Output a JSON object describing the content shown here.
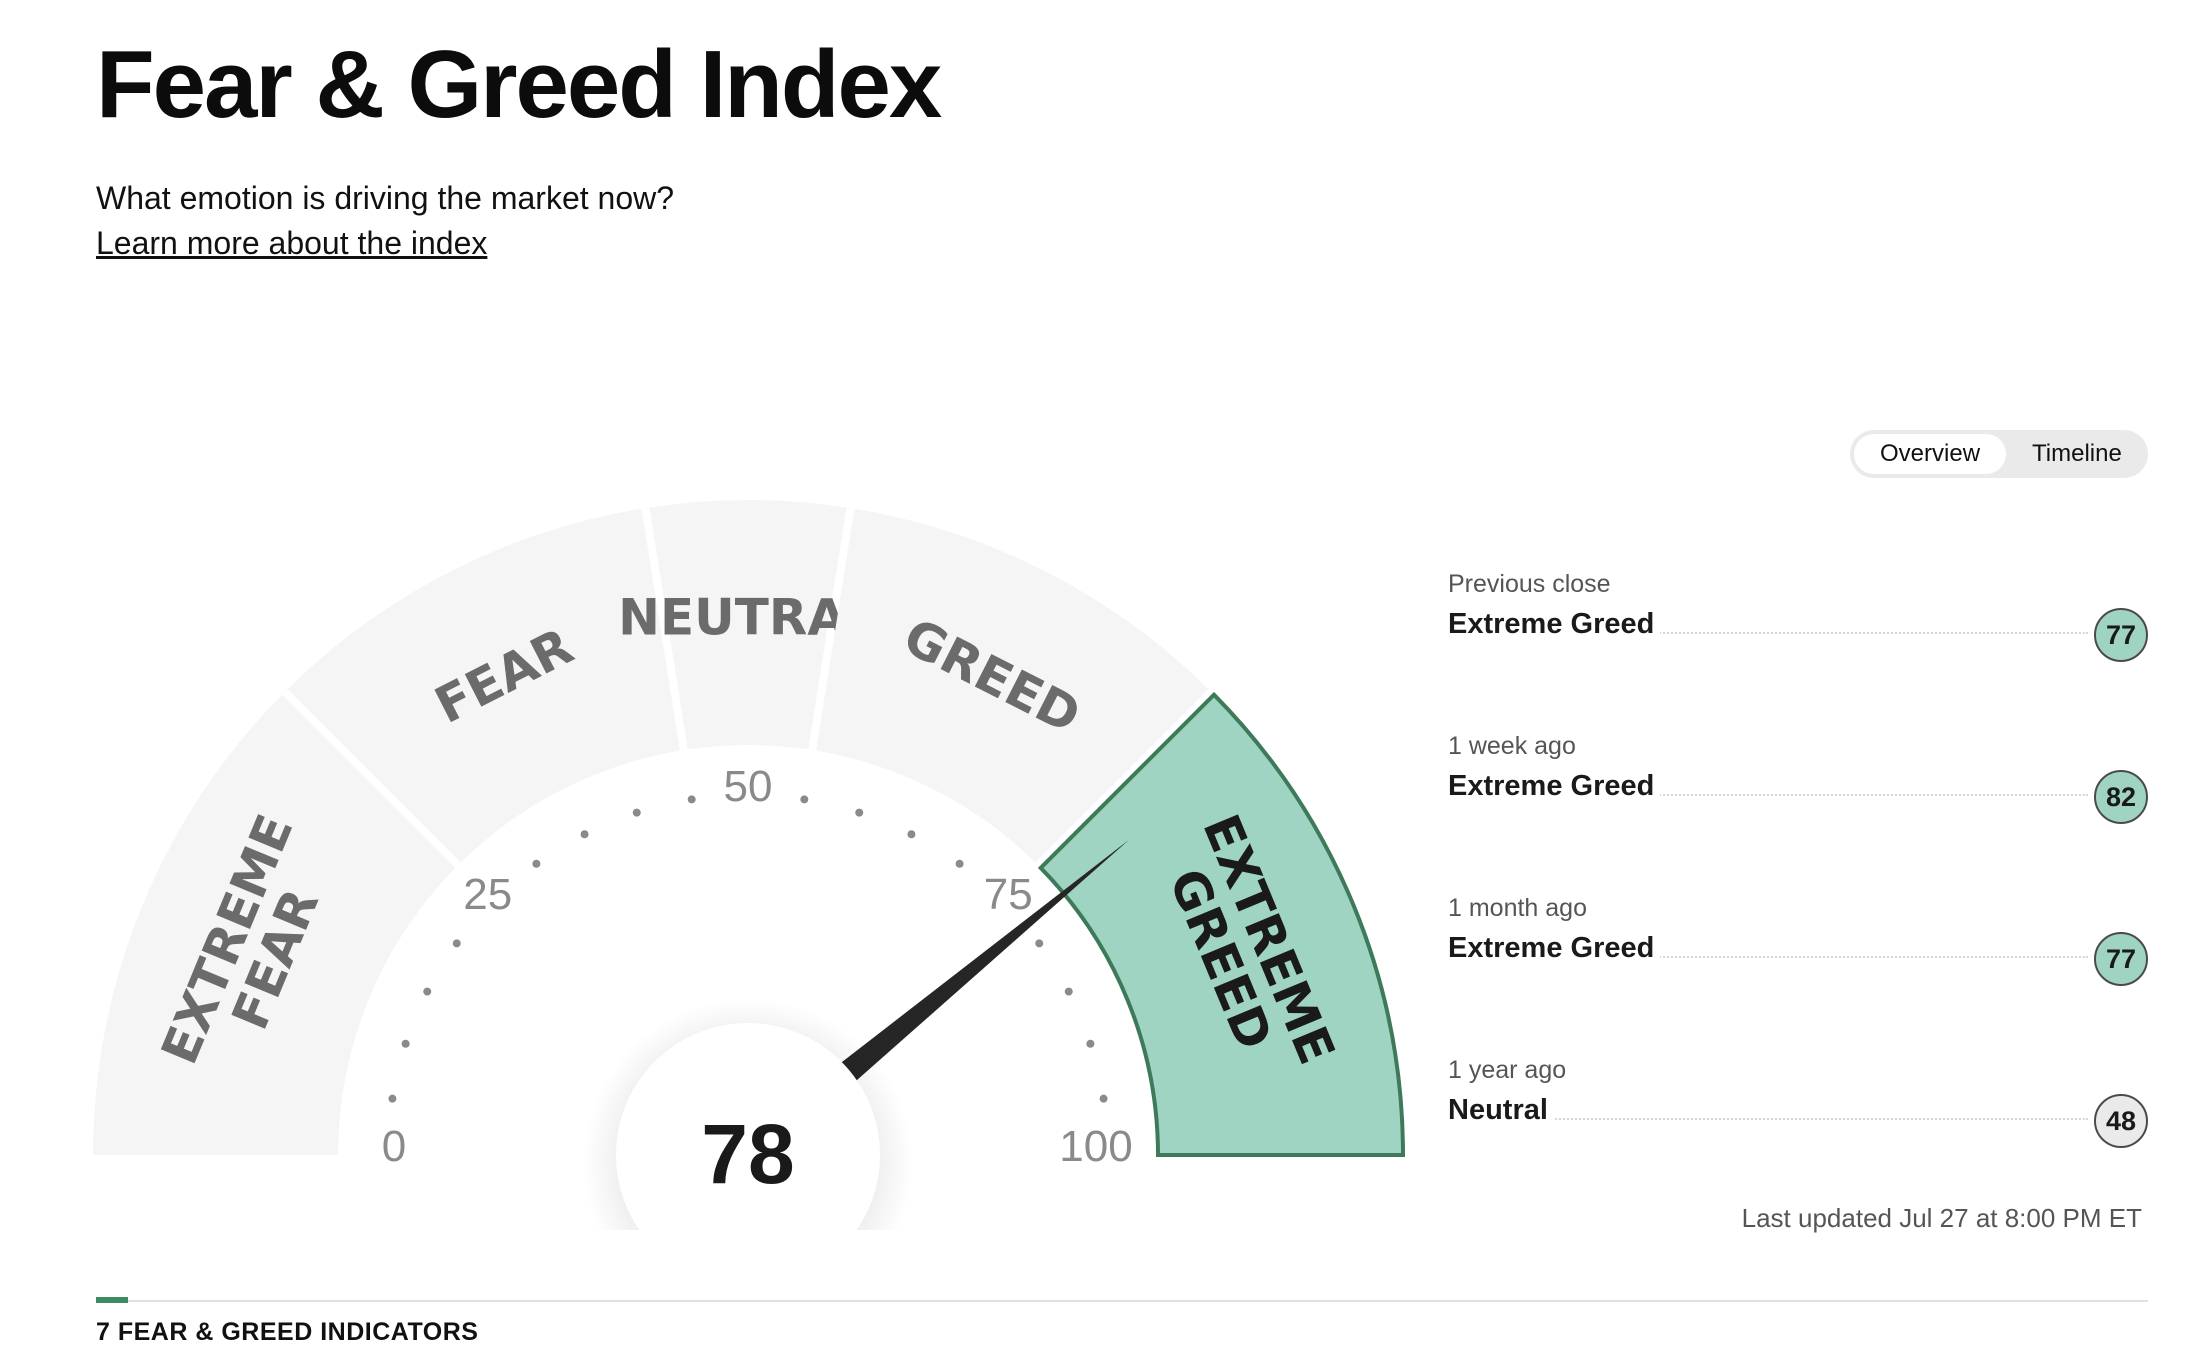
{
  "page": {
    "title": "Fear & Greed Index",
    "subtitle": "What emotion is driving the market now?",
    "learn_more": "Learn more about the index"
  },
  "toggle": {
    "overview": "Overview",
    "timeline": "Timeline",
    "selected": "Overview"
  },
  "gauge": {
    "value": 78,
    "value_label": "78",
    "min": 0,
    "max": 100,
    "active_zone": "Extreme Greed",
    "zones": [
      {
        "lines": [
          "EXTREME",
          "FEAR"
        ],
        "range": [
          0,
          25
        ]
      },
      {
        "lines": [
          "FEAR"
        ],
        "range": [
          25,
          45
        ]
      },
      {
        "lines": [
          "NEUTRAL"
        ],
        "range": [
          45,
          55
        ]
      },
      {
        "lines": [
          "GREED"
        ],
        "range": [
          55,
          75
        ]
      },
      {
        "lines": [
          "EXTREME",
          "GREED"
        ],
        "range": [
          75,
          100
        ]
      }
    ],
    "tick_labels": [
      "0",
      "25",
      "50",
      "75",
      "100"
    ],
    "colors": {
      "zone_bg": "#f5f5f5",
      "active_fill": "#9fd4c2",
      "active_stroke": "#3e7a5a",
      "zone_text": "#6b6b6b",
      "active_text": "#1a1a1a",
      "needle": "#262626",
      "tick_text": "#8a8a8a"
    }
  },
  "history": [
    {
      "period": "Previous close",
      "rating": "Extreme Greed",
      "value": "77",
      "color": "#9fd4c2"
    },
    {
      "period": "1 week ago",
      "rating": "Extreme Greed",
      "value": "82",
      "color": "#9fd4c2"
    },
    {
      "period": "1 month ago",
      "rating": "Extreme Greed",
      "value": "77",
      "color": "#9fd4c2"
    },
    {
      "period": "1 year ago",
      "rating": "Neutral",
      "value": "48",
      "color": "#eaeaea"
    }
  ],
  "last_updated": "Last updated Jul 27 at 8:00 PM ET",
  "indicators_heading": "7 FEAR & GREED INDICATORS",
  "accent_color": "#3d8a63"
}
